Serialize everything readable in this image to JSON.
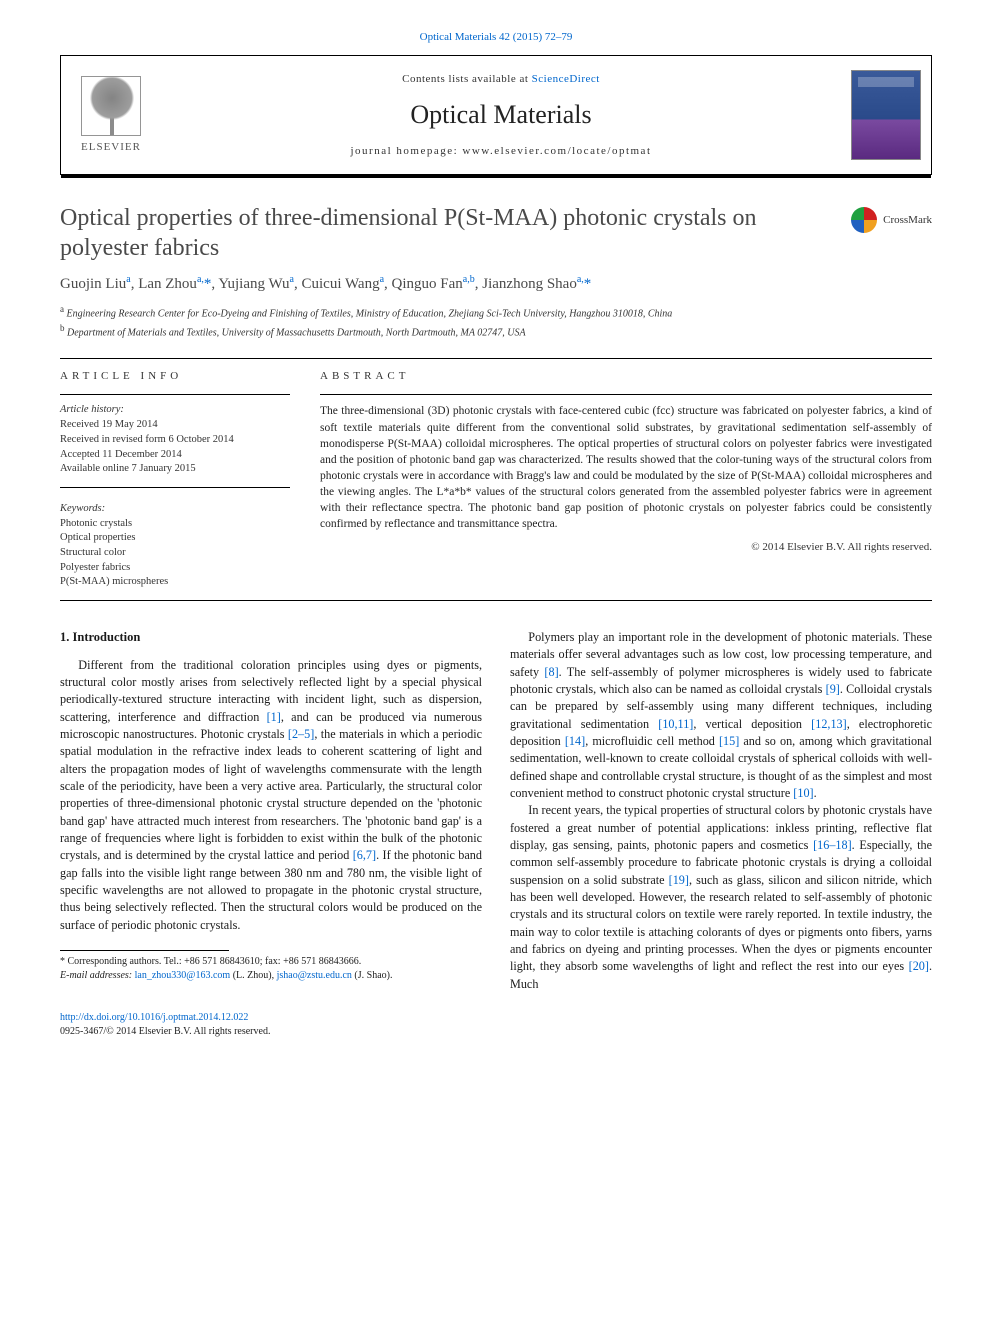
{
  "top_reference": {
    "journal": "Optical Materials",
    "citation": "42 (2015) 72–79",
    "color": "#0066cc"
  },
  "masthead": {
    "publisher": "ELSEVIER",
    "contents_prefix": "Contents lists available at ",
    "contents_link": "ScienceDirect",
    "journal_name": "Optical Materials",
    "homepage_prefix": "journal homepage: ",
    "homepage_url": "www.elsevier.com/locate/optmat",
    "cover_colors": {
      "top": "#3a5a9a",
      "bottom": "#5a2a80"
    }
  },
  "crossmark_label": "CrossMark",
  "title": "Optical properties of three-dimensional P(St-MAA) photonic crystals on polyester fabrics",
  "authors_html": "Guojin Liu<sup>a</sup>, Lan Zhou<sup>a,</sup><span class='ast'>*</span>, Yujiang Wu<sup>a</sup>, Cuicui Wang<sup>a</sup>, Qinguo Fan<sup>a,b</sup>, Jianzhong Shao<sup>a,</sup><span class='ast'>*</span>",
  "affiliations": [
    {
      "key": "a",
      "text": "Engineering Research Center for Eco-Dyeing and Finishing of Textiles, Ministry of Education, Zhejiang Sci-Tech University, Hangzhou 310018, China"
    },
    {
      "key": "b",
      "text": "Department of Materials and Textiles, University of Massachusetts Dartmouth, North Dartmouth, MA 02747, USA"
    }
  ],
  "article_info": {
    "heading": "ARTICLE INFO",
    "history_label": "Article history:",
    "history": [
      "Received 19 May 2014",
      "Received in revised form 6 October 2014",
      "Accepted 11 December 2014",
      "Available online 7 January 2015"
    ],
    "keywords_label": "Keywords:",
    "keywords": [
      "Photonic crystals",
      "Optical properties",
      "Structural color",
      "Polyester fabrics",
      "P(St-MAA) microspheres"
    ]
  },
  "abstract": {
    "heading": "ABSTRACT",
    "text": "The three-dimensional (3D) photonic crystals with face-centered cubic (fcc) structure was fabricated on polyester fabrics, a kind of soft textile materials quite different from the conventional solid substrates, by gravitational sedimentation self-assembly of monodisperse P(St-MAA) colloidal microspheres. The optical properties of structural colors on polyester fabrics were investigated and the position of photonic band gap was characterized. The results showed that the color-tuning ways of the structural colors from photonic crystals were in accordance with Bragg's law and could be modulated by the size of P(St-MAA) colloidal microspheres and the viewing angles. The L*a*b* values of the structural colors generated from the assembled polyester fabrics were in agreement with their reflectance spectra. The photonic band gap position of photonic crystals on polyester fabrics could be consistently confirmed by reflectance and transmittance spectra.",
    "copyright": "© 2014 Elsevier B.V. All rights reserved."
  },
  "section_heading": "1. Introduction",
  "paragraphs": [
    "Different from the traditional coloration principles using dyes or pigments, structural color mostly arises from selectively reflected light by a special physical periodically-textured structure interacting with incident light, such as dispersion, scattering, interference and diffraction [1], and can be produced via numerous microscopic nanostructures. Photonic crystals [2–5], the materials in which a periodic spatial modulation in the refractive index leads to coherent scattering of light and alters the propagation modes of light of wavelengths commensurate with the length scale of the periodicity, have been a very active area. Particularly, the structural color properties of three-dimensional photonic crystal structure depended on the 'photonic band gap' have attracted much interest from researchers. The 'photonic band gap' is a range of frequencies where light is forbidden to exist within the bulk of the photonic crystals, and is determined by the crystal lattice and period [6,7]. If the photonic band gap falls into the visible light range between 380 nm and 780 nm, the visible light of specific wavelengths are not allowed to propagate in the photonic crystal structure, thus being selectively reflected. Then the structural colors would be produced on the surface of periodic photonic crystals.",
    "Polymers play an important role in the development of photonic materials. These materials offer several advantages such as low cost, low processing temperature, and safety [8]. The self-assembly of polymer microspheres is widely used to fabricate photonic crystals, which also can be named as colloidal crystals [9]. Colloidal crystals can be prepared by self-assembly using many different techniques, including gravitational sedimentation [10,11], vertical deposition [12,13], electrophoretic deposition [14], microfluidic cell method [15] and so on, among which gravitational sedimentation, well-known to create colloidal crystals of spherical colloids with well-defined shape and controllable crystal structure, is thought of as the simplest and most convenient method to construct photonic crystal structure [10].",
    "In recent years, the typical properties of structural colors by photonic crystals have fostered a great number of potential applications: inkless printing, reflective flat display, gas sensing, paints, photonic papers and cosmetics [16–18]. Especially, the common self-assembly procedure to fabricate photonic crystals is drying a colloidal suspension on a solid substrate [19], such as glass, silicon and silicon nitride, which has been well developed. However, the research related to self-assembly of photonic crystals and its structural colors on textile were rarely reported. In textile industry, the main way to color textile is attaching colorants of dyes or pigments onto fibers, yarns and fabrics on dyeing and printing processes. When the dyes or pigments encounter light, they absorb some wavelengths of light and reflect the rest into our eyes [20]. Much"
  ],
  "footnote": {
    "corr_label": "* Corresponding authors. Tel.: +86 571 86843610; fax: +86 571 86843666.",
    "email_label": "E-mail addresses: ",
    "email1": "lan_zhou330@163.com",
    "email1_who": " (L. Zhou), ",
    "email2": "jshao@zstu.edu.cn",
    "email2_who": " (J. Shao)."
  },
  "footer": {
    "doi": "http://dx.doi.org/10.1016/j.optmat.2014.12.022",
    "issn_line": "0925-3467/© 2014 Elsevier B.V. All rights reserved."
  },
  "ref_link_color": "#0066cc",
  "citation_refs": [
    "[1]",
    "[2–5]",
    "[6,7]",
    "[8]",
    "[9]",
    "[10,11]",
    "[12,13]",
    "[14]",
    "[15]",
    "[10]",
    "[16–18]",
    "[19]",
    "[20]"
  ]
}
